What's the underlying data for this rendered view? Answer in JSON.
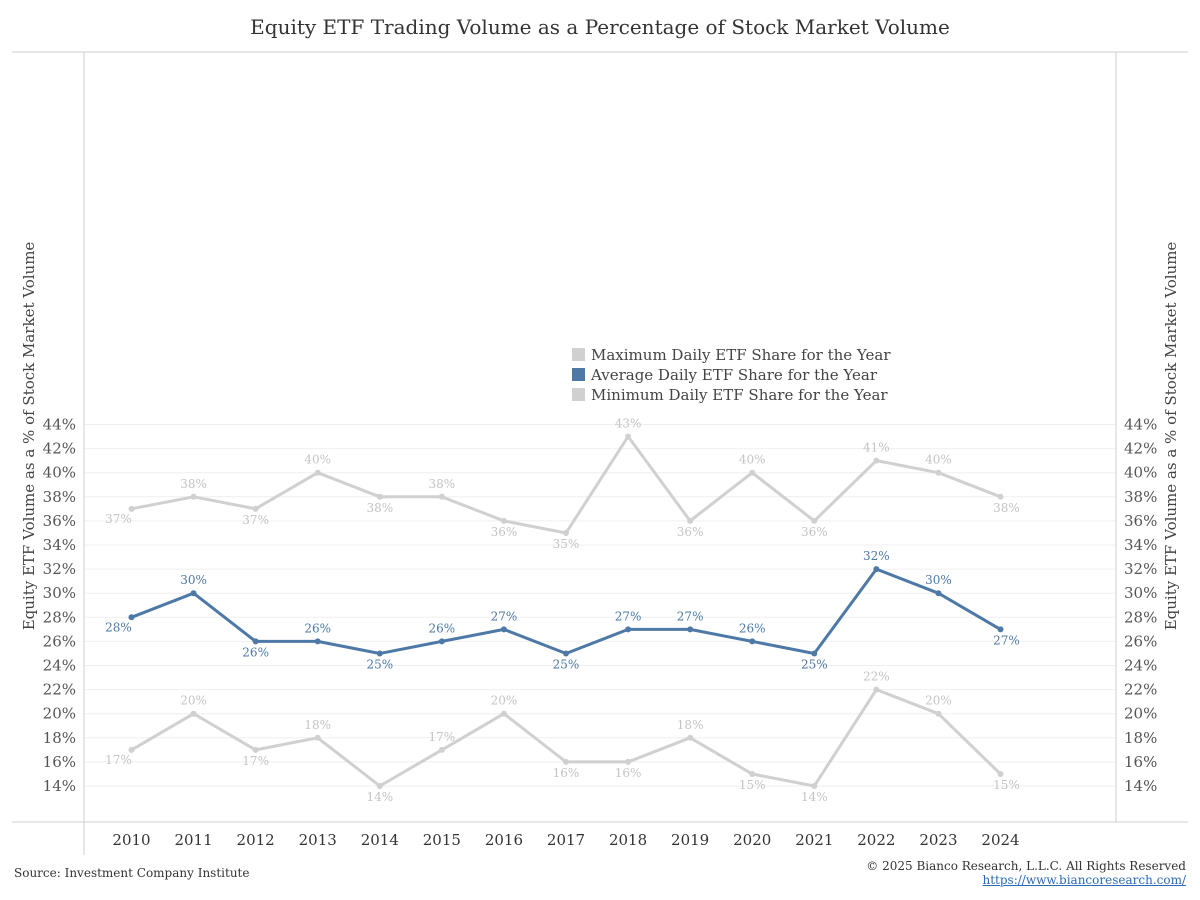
{
  "chart_data": {
    "type": "line",
    "title": "Equity ETF Trading Volume as a Percentage of Stock Market Volume",
    "ylabel": "Equity ETF Volume as a % of Stock Market Volume",
    "y2label": "Equity ETF Volume as a % of Stock Market Volume",
    "ylim": [
      13,
      44.5
    ],
    "yticks": [
      "14%",
      "16%",
      "18%",
      "20%",
      "22%",
      "24%",
      "26%",
      "28%",
      "30%",
      "32%",
      "34%",
      "36%",
      "38%",
      "40%",
      "42%",
      "44%"
    ],
    "ytick_values": [
      14,
      16,
      18,
      20,
      22,
      24,
      26,
      28,
      30,
      32,
      34,
      36,
      38,
      40,
      42,
      44
    ],
    "categories": [
      "2010",
      "2011",
      "2012",
      "2013",
      "2014",
      "2015",
      "2016",
      "2017",
      "2018",
      "2019",
      "2020",
      "2021",
      "2022",
      "2023",
      "2024"
    ],
    "series": [
      {
        "name": "Maximum Daily ETF Share for the Year",
        "color": "#d0d0d0",
        "label_color": "#c4c4c4",
        "values": [
          37,
          38,
          37,
          40,
          38,
          38,
          36,
          35,
          43,
          36,
          40,
          36,
          41,
          40,
          38
        ],
        "labels": [
          "37%",
          "38%",
          "37%",
          "40%",
          "38%",
          "38%",
          "36%",
          "35%",
          "43%",
          "36%",
          "40%",
          "36%",
          "41%",
          "40%",
          "38%"
        ]
      },
      {
        "name": "Average Daily ETF Share for the Year",
        "color": "#4e79a7",
        "label_color": "#4e79a7",
        "values": [
          28,
          30,
          26,
          26,
          25,
          26,
          27,
          25,
          27,
          27,
          26,
          25,
          32,
          30,
          27
        ],
        "labels": [
          "28%",
          "30%",
          "26%",
          "26%",
          "25%",
          "26%",
          "27%",
          "25%",
          "27%",
          "27%",
          "26%",
          "25%",
          "32%",
          "30%",
          "27%"
        ]
      },
      {
        "name": "Minimum Daily ETF Share for the Year",
        "color": "#d0d0d0",
        "label_color": "#c4c4c4",
        "values": [
          17,
          20,
          17,
          18,
          14,
          17,
          20,
          16,
          16,
          18,
          15,
          14,
          22,
          20,
          15
        ],
        "labels": [
          "17%",
          "20%",
          "17%",
          "18%",
          "14%",
          "17%",
          "20%",
          "16%",
          "16%",
          "18%",
          "15%",
          "14%",
          "22%",
          "20%",
          "15%"
        ]
      }
    ],
    "legend": "center",
    "grid": true
  },
  "footer": {
    "source": "Source: Investment Company Institute",
    "copyright": "© 2025 Bianco Research, L.L.C. All Rights Reserved",
    "website": "https://www.biancoresearch.com/"
  }
}
